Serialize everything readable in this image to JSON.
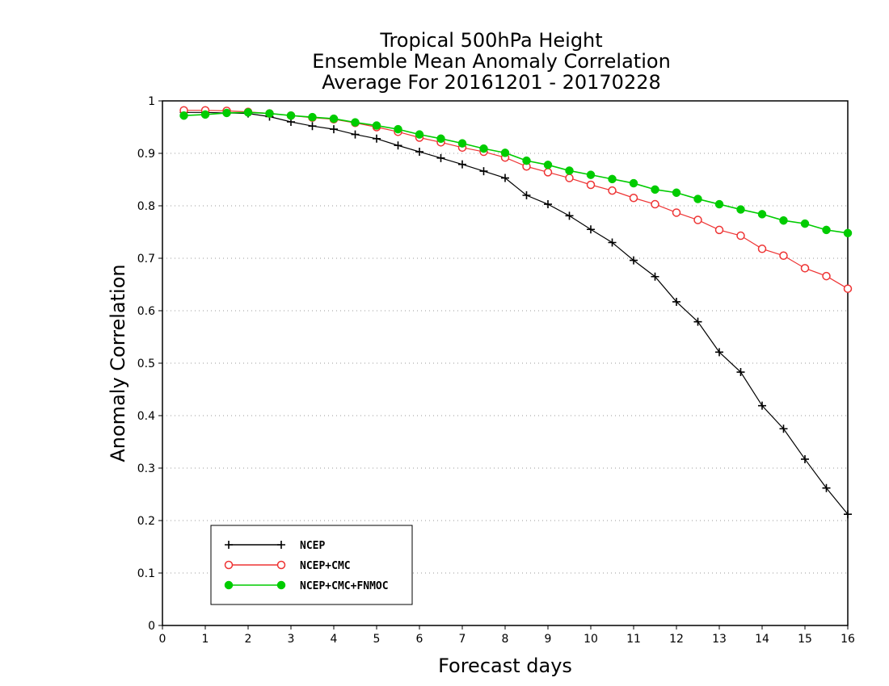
{
  "chart_data": {
    "type": "line",
    "title": [
      "Tropical 500hPa Height",
      "Ensemble Mean Anomaly Correlation",
      "Average For 20161201 - 20170228"
    ],
    "xlabel": "Forecast days",
    "ylabel": "Anomaly Correlation",
    "xlim": [
      0,
      16
    ],
    "ylim": [
      0,
      1
    ],
    "xticks": [
      "0",
      "1",
      "2",
      "3",
      "4",
      "5",
      "6",
      "7",
      "8",
      "9",
      "10",
      "11",
      "12",
      "13",
      "14",
      "15",
      "16"
    ],
    "yticks": [
      "0",
      "0.1",
      "0.2",
      "0.3",
      "0.4",
      "0.5",
      "0.6",
      "0.7",
      "0.8",
      "0.9",
      "1"
    ],
    "grid": "y-dotted",
    "legend_position": "bottom-left",
    "x": [
      0.5,
      1,
      1.5,
      2,
      2.5,
      3,
      3.5,
      4,
      4.5,
      5,
      5.5,
      6,
      6.5,
      7,
      7.5,
      8,
      8.5,
      9,
      9.5,
      10,
      10.5,
      11,
      11.5,
      12,
      12.5,
      13,
      13.5,
      14,
      14.5,
      15,
      15.5,
      16
    ],
    "series": [
      {
        "name": "NCEP",
        "color": "#000000",
        "marker": "plus",
        "values": [
          0.978,
          0.978,
          0.977,
          0.976,
          0.97,
          0.96,
          0.952,
          0.946,
          0.936,
          0.928,
          0.915,
          0.903,
          0.891,
          0.879,
          0.866,
          0.853,
          0.82,
          0.803,
          0.781,
          0.755,
          0.73,
          0.696,
          0.665,
          0.617,
          0.579,
          0.521,
          0.483,
          0.419,
          0.375,
          0.317,
          0.262,
          0.212
        ]
      },
      {
        "name": "NCEP+CMC",
        "color": "#ee3333",
        "marker": "open-circle",
        "values": [
          0.982,
          0.982,
          0.981,
          0.979,
          0.976,
          0.972,
          0.968,
          0.965,
          0.958,
          0.95,
          0.941,
          0.93,
          0.921,
          0.911,
          0.903,
          0.892,
          0.875,
          0.864,
          0.853,
          0.84,
          0.829,
          0.815,
          0.803,
          0.787,
          0.773,
          0.754,
          0.743,
          0.718,
          0.705,
          0.681,
          0.666,
          0.642
        ]
      },
      {
        "name": "NCEP+CMC+FNMOC",
        "color": "#00cc00",
        "marker": "filled-circle",
        "values": [
          0.972,
          0.974,
          0.977,
          0.978,
          0.976,
          0.972,
          0.969,
          0.966,
          0.959,
          0.953,
          0.946,
          0.936,
          0.928,
          0.919,
          0.909,
          0.901,
          0.886,
          0.878,
          0.867,
          0.859,
          0.851,
          0.843,
          0.831,
          0.825,
          0.813,
          0.803,
          0.793,
          0.784,
          0.772,
          0.766,
          0.754,
          0.748
        ]
      }
    ]
  }
}
